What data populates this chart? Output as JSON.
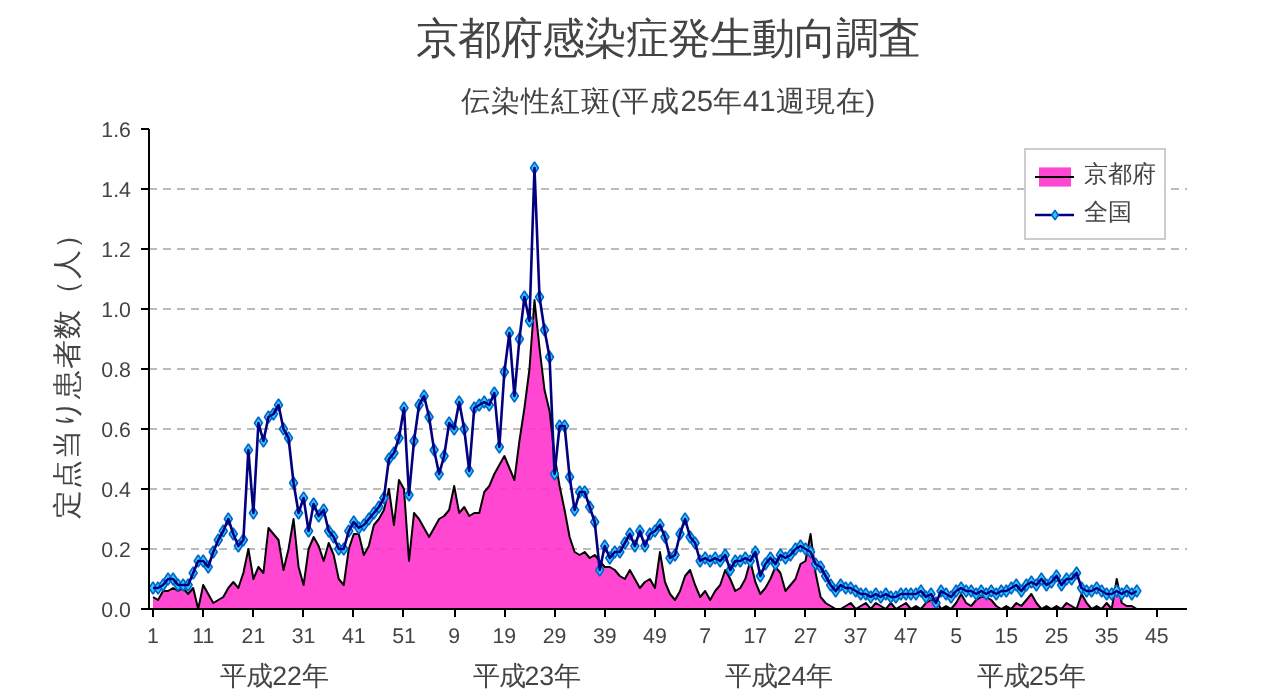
{
  "chart_data": {
    "type": "line",
    "title": "京都府感染症発生動向調査",
    "subtitle": "伝染性紅斑(平成25年41週現在)",
    "ylabel": "定点当り患者数（人）",
    "categories": [
      "1",
      null,
      null,
      null,
      null,
      null,
      null,
      null,
      null,
      null,
      "11",
      null,
      null,
      null,
      null,
      null,
      null,
      null,
      null,
      null,
      "21",
      null,
      null,
      null,
      null,
      null,
      null,
      null,
      null,
      null,
      "31",
      null,
      null,
      null,
      null,
      null,
      null,
      null,
      null,
      null,
      "41",
      null,
      null,
      null,
      null,
      null,
      null,
      null,
      null,
      null,
      "51",
      null,
      null,
      null,
      null,
      null,
      null,
      null,
      null,
      null,
      "9",
      null,
      null,
      null,
      null,
      null,
      null,
      null,
      null,
      null,
      "19",
      null,
      null,
      null,
      null,
      null,
      null,
      null,
      null,
      null,
      "29",
      null,
      null,
      null,
      null,
      null,
      null,
      null,
      null,
      null,
      "39",
      null,
      null,
      null,
      null,
      null,
      null,
      null,
      null,
      null,
      "49",
      null,
      null,
      null,
      null,
      null,
      null,
      null,
      null,
      null,
      "7",
      null,
      null,
      null,
      null,
      null,
      null,
      null,
      null,
      null,
      "17",
      null,
      null,
      null,
      null,
      null,
      null,
      null,
      null,
      null,
      "27",
      null,
      null,
      null,
      null,
      null,
      null,
      null,
      null,
      null,
      "37",
      null,
      null,
      null,
      null,
      null,
      null,
      null,
      null,
      null,
      "47",
      null,
      null,
      null,
      null,
      null,
      null,
      null,
      null,
      null,
      "5",
      null,
      null,
      null,
      null,
      null,
      null,
      null,
      null,
      null,
      "15",
      null,
      null,
      null,
      null,
      null,
      null,
      null,
      null,
      null,
      "25",
      null,
      null,
      null,
      null,
      null,
      null,
      null,
      null,
      null,
      "35",
      null,
      null,
      null,
      null,
      null,
      null,
      null,
      null,
      null,
      "45"
    ],
    "series": [
      {
        "name": "京都府",
        "type": "area",
        "color": "#ff33cc",
        "values": [
          0.04,
          0.03,
          0.06,
          0.06,
          0.07,
          0.06,
          0.07,
          0.05,
          0.07,
          0.0,
          0.08,
          0.05,
          0.02,
          0.03,
          0.04,
          0.07,
          0.09,
          0.07,
          0.12,
          0.2,
          0.1,
          0.14,
          0.12,
          0.27,
          0.25,
          0.23,
          0.13,
          0.2,
          0.3,
          0.14,
          0.08,
          0.2,
          0.24,
          0.21,
          0.16,
          0.22,
          0.18,
          0.1,
          0.08,
          0.2,
          0.25,
          0.25,
          0.18,
          0.21,
          0.28,
          0.3,
          0.33,
          0.4,
          0.28,
          0.43,
          0.4,
          0.16,
          0.32,
          0.3,
          0.27,
          0.24,
          0.27,
          0.3,
          0.31,
          0.33,
          0.41,
          0.32,
          0.34,
          0.31,
          0.32,
          0.32,
          0.39,
          0.41,
          0.45,
          0.48,
          0.51,
          0.47,
          0.43,
          0.56,
          0.67,
          0.8,
          1.03,
          0.87,
          0.73,
          0.66,
          0.51,
          0.41,
          0.33,
          0.24,
          0.19,
          0.18,
          0.19,
          0.17,
          0.18,
          0.16,
          0.14,
          0.14,
          0.13,
          0.11,
          0.1,
          0.13,
          0.1,
          0.07,
          0.09,
          0.1,
          0.07,
          0.19,
          0.09,
          0.05,
          0.03,
          0.06,
          0.11,
          0.13,
          0.08,
          0.04,
          0.06,
          0.03,
          0.06,
          0.08,
          0.13,
          0.1,
          0.06,
          0.07,
          0.1,
          0.16,
          0.09,
          0.05,
          0.07,
          0.1,
          0.14,
          0.12,
          0.06,
          0.08,
          0.1,
          0.15,
          0.16,
          0.25,
          0.12,
          0.04,
          0.02,
          0.01,
          0.0,
          0.0,
          0.01,
          0.02,
          0.0,
          0.01,
          0.02,
          0.0,
          0.02,
          0.01,
          0.0,
          0.02,
          0.0,
          0.01,
          0.02,
          0.0,
          0.01,
          0.0,
          0.02,
          0.03,
          0.03,
          0.0,
          0.01,
          0.0,
          0.02,
          0.05,
          0.02,
          0.01,
          0.03,
          0.04,
          0.04,
          0.03,
          0.01,
          0.0,
          0.01,
          0.0,
          0.02,
          0.01,
          0.03,
          0.05,
          0.02,
          0.0,
          0.01,
          0.0,
          0.01,
          0.0,
          0.02,
          0.01,
          0.0,
          0.05,
          0.02,
          0.0,
          0.01,
          0.0,
          0.02,
          0.0,
          0.1,
          0.02,
          0.01,
          0.01,
          0.0,
          null,
          null,
          null,
          null
        ]
      },
      {
        "name": "全国",
        "color": "#000080",
        "marker": "diamond",
        "values": [
          0.07,
          0.07,
          0.08,
          0.1,
          0.1,
          0.08,
          0.08,
          0.08,
          0.12,
          0.16,
          0.16,
          0.14,
          0.19,
          0.23,
          0.26,
          0.3,
          0.25,
          0.21,
          0.23,
          0.53,
          0.32,
          0.62,
          0.56,
          0.64,
          0.65,
          0.68,
          0.6,
          0.57,
          0.42,
          0.32,
          0.37,
          0.26,
          0.35,
          0.31,
          0.33,
          0.26,
          0.24,
          0.2,
          0.2,
          0.26,
          0.29,
          0.27,
          0.28,
          0.3,
          0.32,
          0.34,
          0.37,
          0.5,
          0.52,
          0.57,
          0.67,
          0.38,
          0.56,
          0.68,
          0.71,
          0.64,
          0.53,
          0.45,
          0.51,
          0.62,
          0.6,
          0.69,
          0.6,
          0.46,
          0.67,
          0.68,
          0.69,
          0.68,
          0.72,
          0.54,
          0.79,
          0.92,
          0.71,
          0.9,
          1.04,
          0.96,
          1.47,
          1.04,
          0.93,
          0.84,
          0.45,
          0.61,
          0.61,
          0.44,
          0.33,
          0.39,
          0.39,
          0.34,
          0.29,
          0.13,
          0.21,
          0.17,
          0.19,
          0.19,
          0.22,
          0.25,
          0.21,
          0.26,
          0.21,
          0.25,
          0.26,
          0.28,
          0.24,
          0.17,
          0.18,
          0.25,
          0.3,
          0.24,
          0.22,
          0.16,
          0.17,
          0.16,
          0.17,
          0.16,
          0.18,
          0.13,
          0.16,
          0.16,
          0.17,
          0.16,
          0.19,
          0.11,
          0.15,
          0.17,
          0.15,
          0.18,
          0.17,
          0.18,
          0.2,
          0.21,
          0.2,
          0.19,
          0.15,
          0.14,
          0.11,
          0.08,
          0.06,
          0.08,
          0.07,
          0.07,
          0.06,
          0.05,
          0.05,
          0.04,
          0.05,
          0.04,
          0.05,
          0.04,
          0.04,
          0.05,
          0.05,
          0.05,
          0.05,
          0.06,
          0.04,
          0.05,
          0.02,
          0.06,
          0.05,
          0.04,
          0.06,
          0.07,
          0.06,
          0.06,
          0.05,
          0.06,
          0.05,
          0.06,
          0.05,
          0.06,
          0.06,
          0.07,
          0.08,
          0.06,
          0.08,
          0.09,
          0.08,
          0.1,
          0.08,
          0.09,
          0.11,
          0.08,
          0.1,
          0.1,
          0.12,
          0.07,
          0.06,
          0.06,
          0.07,
          0.06,
          0.05,
          0.05,
          0.06,
          0.05,
          0.06,
          0.05,
          0.06,
          null,
          null,
          null,
          null
        ]
      }
    ],
    "ylim": [
      0,
      1.6
    ],
    "yticks": [
      {
        "value": 0,
        "label": "0.0"
      },
      {
        "value": 0.2,
        "label": "0.2"
      },
      {
        "value": 0.4,
        "label": "0.4"
      },
      {
        "value": 0.6,
        "label": "0.6"
      },
      {
        "value": 0.8,
        "label": "0.8"
      },
      {
        "value": 1.0,
        "label": "1.0"
      },
      {
        "value": 1.2,
        "label": "1.2"
      },
      {
        "value": 1.4,
        "label": "1.4"
      },
      {
        "value": 1.6,
        "label": "1.6"
      }
    ],
    "annotations": [
      "平成22年",
      "平成23年",
      "平成24年",
      "平成25年"
    ],
    "grid": "y",
    "legend": "top right"
  }
}
